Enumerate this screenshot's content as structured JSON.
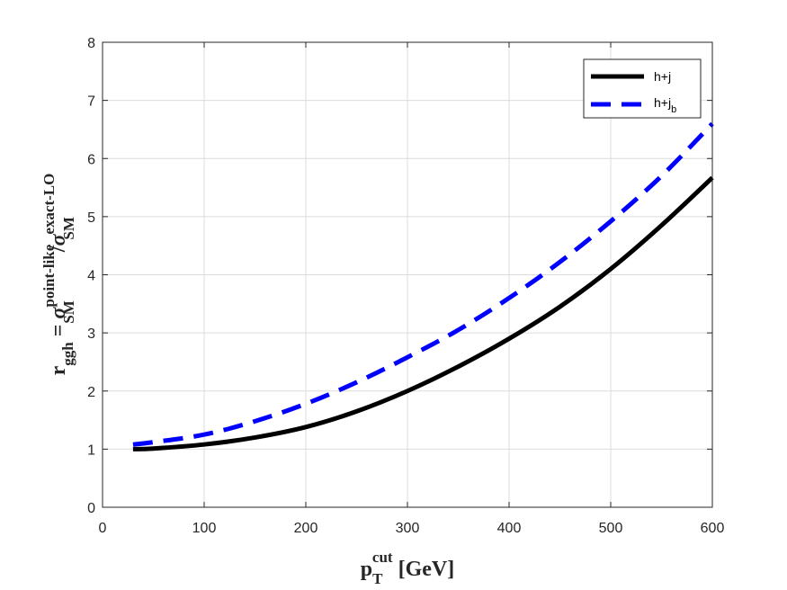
{
  "chart_data": {
    "type": "line",
    "xlabel": {
      "base": "p",
      "sub": "T",
      "sup": "cut",
      "unit": "[GeV]"
    },
    "ylabel": {
      "lhs_base": "r",
      "lhs_sub": "ggh",
      "equals": "=",
      "num_base": "σ",
      "num_sup": "point-like",
      "num_sub": "SM",
      "slash": "/",
      "den_base": "σ",
      "den_sup": "exact-LO",
      "den_sub": "SM"
    },
    "xlim": [
      0,
      600
    ],
    "ylim": [
      0,
      8
    ],
    "xticks": [
      0,
      100,
      200,
      300,
      400,
      500,
      600
    ],
    "yticks": [
      0,
      1,
      2,
      3,
      4,
      5,
      6,
      7,
      8
    ],
    "grid": true,
    "legend_position": "top-right",
    "series": [
      {
        "name": "h+j",
        "name_base": "h+j",
        "name_sub": "",
        "color": "#000000",
        "style": "solid",
        "x": [
          30,
          50,
          100,
          150,
          200,
          250,
          300,
          350,
          400,
          450,
          500,
          550,
          600
        ],
        "y": [
          1.0,
          1.01,
          1.08,
          1.2,
          1.38,
          1.65,
          2.0,
          2.42,
          2.9,
          3.45,
          4.1,
          4.85,
          5.67
        ]
      },
      {
        "name": "h+jb",
        "name_base": "h+j",
        "name_sub": "b",
        "color": "#0000ff",
        "style": "dashed",
        "x": [
          30,
          50,
          100,
          150,
          200,
          250,
          300,
          350,
          400,
          450,
          500,
          550,
          600
        ],
        "y": [
          1.08,
          1.12,
          1.25,
          1.48,
          1.78,
          2.15,
          2.58,
          3.05,
          3.6,
          4.22,
          4.92,
          5.7,
          6.6
        ]
      }
    ]
  }
}
